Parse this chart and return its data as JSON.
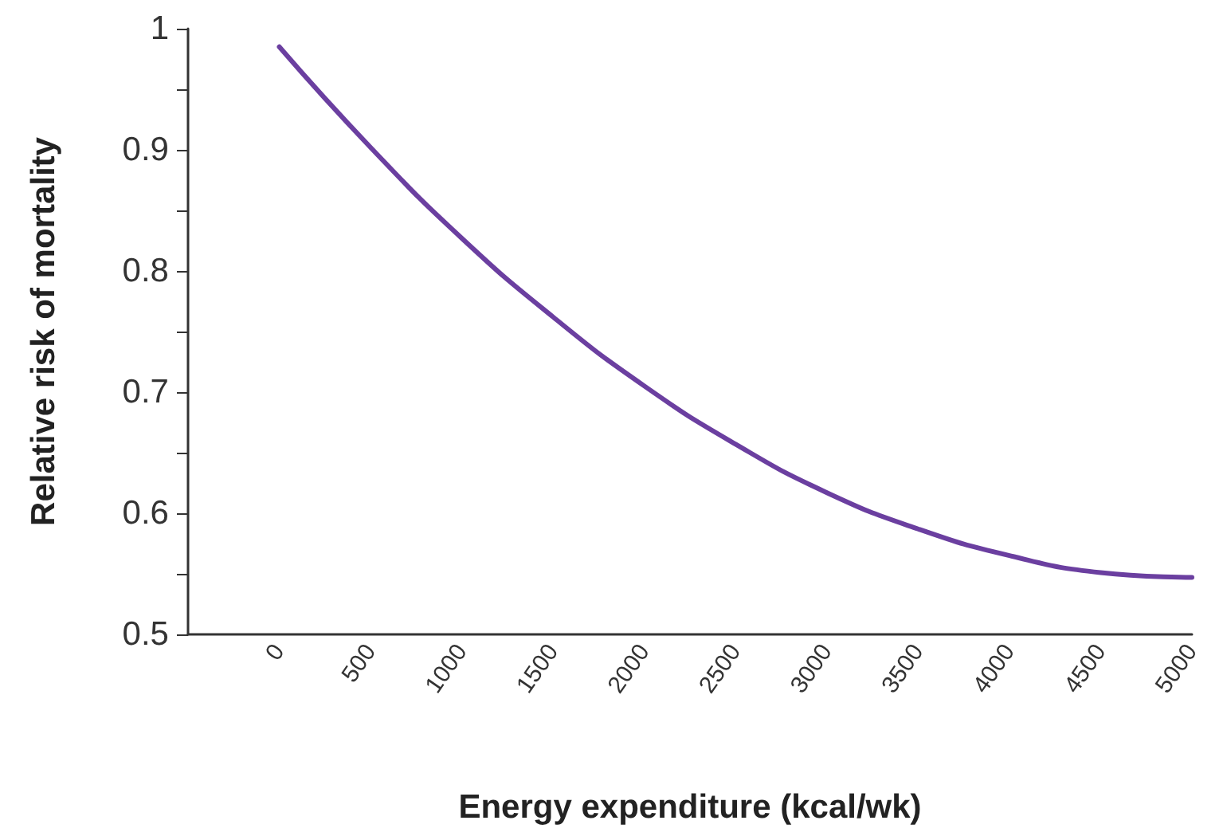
{
  "chart_data": {
    "type": "line",
    "xlabel": "Energy expenditure (kcal/wk)",
    "ylabel": "Relative risk of mortality",
    "x": [
      0,
      500,
      1000,
      1500,
      2000,
      2500,
      3000,
      3500,
      4000,
      4500,
      5000
    ],
    "series": [
      {
        "color": "#6b3fa0",
        "values": [
          0.985,
          0.902,
          0.827,
          0.762,
          0.705,
          0.657,
          0.617,
          0.587,
          0.565,
          0.551,
          0.547
        ]
      }
    ],
    "xlim": [
      -500,
      5000
    ],
    "xticks": [
      0,
      500,
      1000,
      1500,
      2000,
      2500,
      3000,
      3500,
      4000,
      4500,
      5000
    ],
    "ylim": [
      0.5,
      1
    ],
    "yticks": [
      0.5,
      {
        "value": 0.55,
        "label": null
      },
      0.6,
      {
        "value": 0.65,
        "label": null
      },
      0.7,
      {
        "value": 0.75,
        "label": null
      },
      0.8,
      {
        "value": 0.85,
        "label": null
      },
      0.9,
      {
        "value": 0.95,
        "label": null
      },
      1
    ],
    "grid": false,
    "marker": "none",
    "line_style": "solid"
  }
}
